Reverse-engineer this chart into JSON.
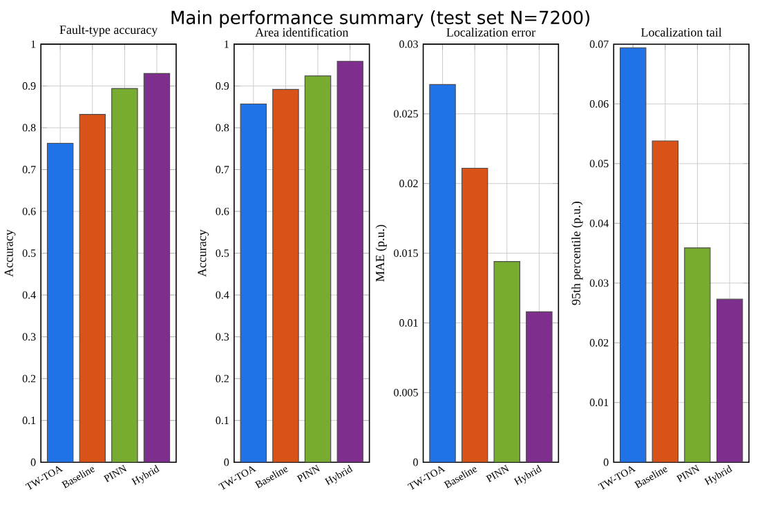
{
  "chart_data": [
    {
      "type": "bar",
      "title": "Fault-type accuracy",
      "ylabel": "Accuracy",
      "categories": [
        "TW-TOA",
        "Baseline",
        "PINN",
        "Hybrid"
      ],
      "values": [
        0.763,
        0.832,
        0.894,
        0.93
      ],
      "colors": [
        "#1f73e6",
        "#d95319",
        "#77ac30",
        "#7e2f8e"
      ],
      "ylim": [
        0,
        1
      ],
      "yticks": [
        0,
        0.1,
        0.2,
        0.3,
        0.4,
        0.5,
        0.6,
        0.7,
        0.8,
        0.9,
        1
      ],
      "grid": true,
      "annotations": [
        "Main performance summary (test set N=7200)"
      ]
    },
    {
      "type": "bar",
      "title": "Area identification",
      "ylabel": "Accuracy",
      "categories": [
        "TW-TOA",
        "Baseline",
        "PINN",
        "Hybrid"
      ],
      "values": [
        0.857,
        0.892,
        0.924,
        0.959
      ],
      "colors": [
        "#1f73e6",
        "#d95319",
        "#77ac30",
        "#7e2f8e"
      ],
      "ylim": [
        0,
        1
      ],
      "yticks": [
        0,
        0.1,
        0.2,
        0.3,
        0.4,
        0.5,
        0.6,
        0.7,
        0.8,
        0.9,
        1
      ],
      "grid": true
    },
    {
      "type": "bar",
      "title": "Localization error",
      "ylabel": "MAE (p.u.)",
      "categories": [
        "TW-TOA",
        "Baseline",
        "PINN",
        "Hybrid"
      ],
      "values": [
        0.0271,
        0.0211,
        0.0144,
        0.0108
      ],
      "colors": [
        "#1f73e6",
        "#d95319",
        "#77ac30",
        "#7e2f8e"
      ],
      "ylim": [
        0,
        0.03
      ],
      "yticks": [
        0,
        0.005,
        0.01,
        0.015,
        0.02,
        0.025,
        0.03
      ],
      "grid": true
    },
    {
      "type": "bar",
      "title": "Localization tail",
      "ylabel": "95th percentile (p.u.)",
      "categories": [
        "TW-TOA",
        "Baseline",
        "PINN",
        "Hybrid"
      ],
      "values": [
        0.0694,
        0.0538,
        0.0359,
        0.0273
      ],
      "colors": [
        "#1f73e6",
        "#d95319",
        "#77ac30",
        "#7e2f8e"
      ],
      "ylim": [
        0,
        0.07
      ],
      "yticks": [
        0,
        0.01,
        0.02,
        0.03,
        0.04,
        0.05,
        0.06,
        0.07
      ],
      "grid": true
    }
  ]
}
